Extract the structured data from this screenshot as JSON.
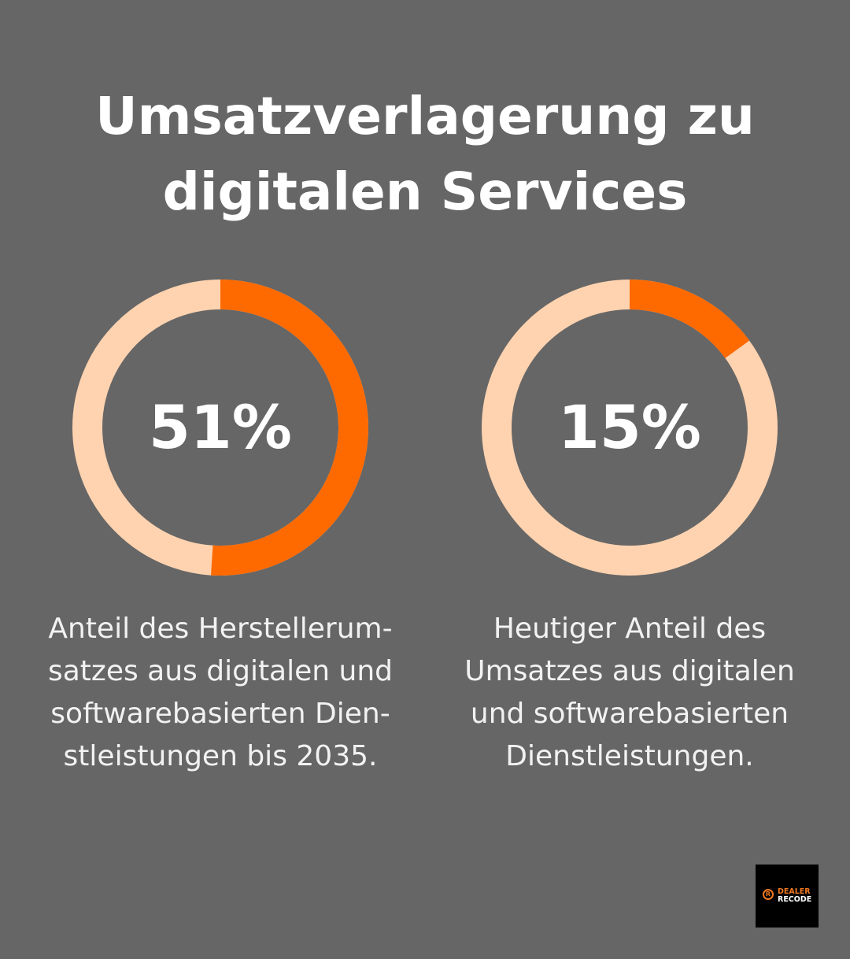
{
  "title_lines": [
    "Umsatzverlagerung zu",
    "digitalen Services"
  ],
  "colors": {
    "background": "#666666",
    "accent": "#FF6A00",
    "track": "#FFD3B0"
  },
  "chart_data": [
    {
      "type": "pie",
      "variant": "donut",
      "value": 51,
      "label": "51%",
      "description_lines": [
        "Anteil des Herstellerum-",
        "satzes aus digitalen und",
        "softwarebasierten Dien-",
        "stleistungen bis 2035."
      ]
    },
    {
      "type": "pie",
      "variant": "donut",
      "value": 15,
      "label": "15%",
      "description_lines": [
        "Heutiger Anteil des",
        "Umsatzes aus digitalen",
        "und softwarebasierten",
        "Dienstleistungen."
      ]
    }
  ],
  "logo": {
    "line1": "DEALER",
    "line2": "RECODE"
  }
}
